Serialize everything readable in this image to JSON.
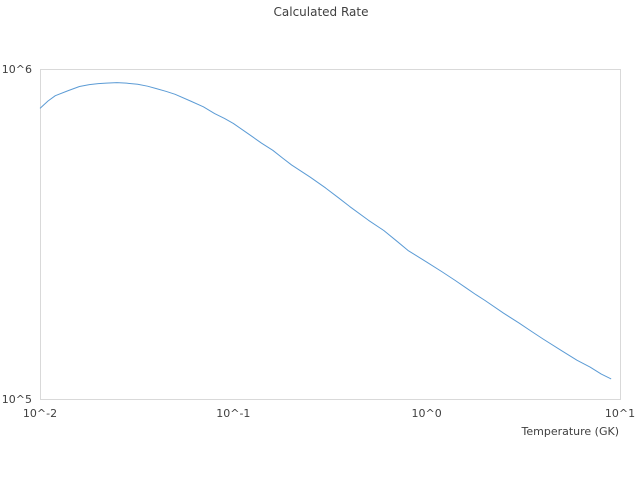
{
  "chart_data": {
    "type": "line",
    "title": "Calculated Rate",
    "xlabel": "Temperature (GK)",
    "ylabel": "",
    "x_scale": "log",
    "y_scale": "log",
    "xlim": [
      0.01,
      10
    ],
    "ylim": [
      100000,
      1000000
    ],
    "x_ticks": [
      {
        "value": 0.01,
        "label": "10^-2"
      },
      {
        "value": 0.1,
        "label": "10^-1"
      },
      {
        "value": 1,
        "label": "10^0"
      },
      {
        "value": 10,
        "label": "10^1"
      }
    ],
    "y_ticks": [
      {
        "value": 100000,
        "label": "10^5"
      },
      {
        "value": 1000000,
        "label": "10^6"
      }
    ],
    "grid": false,
    "legend": "none",
    "series": [
      {
        "color": "#5b9bd5",
        "x": [
          0.01,
          0.011,
          0.012,
          0.014,
          0.016,
          0.018,
          0.02,
          0.022,
          0.025,
          0.028,
          0.032,
          0.036,
          0.04,
          0.045,
          0.05,
          0.06,
          0.07,
          0.08,
          0.09,
          0.1,
          0.12,
          0.14,
          0.16,
          0.18,
          0.2,
          0.25,
          0.3,
          0.35,
          0.4,
          0.5,
          0.6,
          0.7,
          0.8,
          1,
          1.2,
          1.4,
          1.6,
          1.8,
          2,
          2.5,
          3,
          3.5,
          4,
          5,
          6,
          7,
          8,
          9
        ],
        "y": [
          760000,
          800000,
          830000,
          860000,
          885000,
          897000,
          903000,
          906000,
          909000,
          906000,
          899000,
          887000,
          872000,
          855000,
          838000,
          800000,
          768000,
          733000,
          708000,
          684000,
          635000,
          596000,
          567000,
          537000,
          512000,
          470000,
          436000,
          407000,
          383000,
          348000,
          324000,
          301000,
          282000,
          260000,
          243000,
          229000,
          217000,
          207000,
          199000,
          182000,
          170000,
          160000,
          152000,
          140000,
          131000,
          125000,
          119000,
          115000
        ]
      }
    ]
  }
}
